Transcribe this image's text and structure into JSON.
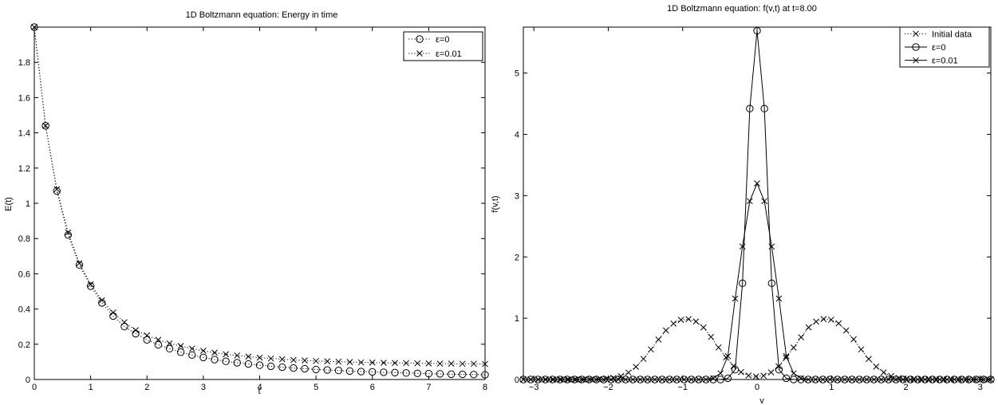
{
  "chart_data": [
    {
      "type": "scatter",
      "title": "1D Boltzmann equation: Energy in time",
      "xlabel": "t",
      "ylabel": "E(t)",
      "xlim": [
        0,
        8
      ],
      "ylim": [
        0,
        2
      ],
      "xticks": [
        "0",
        "1",
        "2",
        "3",
        "4",
        "5",
        "6",
        "7",
        "8"
      ],
      "yticks": [
        "0",
        "0.2",
        "0.4",
        "0.6",
        "0.8",
        "1",
        "1.2",
        "1.4",
        "1.6",
        "1.8"
      ],
      "legend_position": "top-right",
      "grid": false,
      "series": [
        {
          "name": "ε=0",
          "marker": "circle",
          "line": "dotted",
          "x": [
            0,
            0.2,
            0.4,
            0.6,
            0.8,
            1,
            1.2,
            1.4,
            1.6,
            1.8,
            2,
            2.2,
            2.4,
            2.6,
            2.8,
            3,
            3.2,
            3.4,
            3.6,
            3.8,
            4,
            4.2,
            4.4,
            4.6,
            4.8,
            5,
            5.2,
            5.4,
            5.6,
            5.8,
            6,
            6.2,
            6.4,
            6.6,
            6.8,
            7,
            7.2,
            7.4,
            7.6,
            7.8,
            8
          ],
          "y": [
            2.0,
            1.44,
            1.07,
            0.82,
            0.65,
            0.53,
            0.435,
            0.36,
            0.3,
            0.26,
            0.225,
            0.197,
            0.175,
            0.155,
            0.139,
            0.125,
            0.113,
            0.103,
            0.095,
            0.088,
            0.081,
            0.075,
            0.07,
            0.065,
            0.061,
            0.057,
            0.054,
            0.051,
            0.048,
            0.045,
            0.043,
            0.041,
            0.039,
            0.037,
            0.035,
            0.033,
            0.032,
            0.03,
            0.029,
            0.028,
            0.027
          ]
        },
        {
          "name": "ε=0.01",
          "marker": "x",
          "line": "dotted",
          "x": [
            0,
            0.2,
            0.4,
            0.6,
            0.8,
            1,
            1.2,
            1.4,
            1.6,
            1.8,
            2,
            2.2,
            2.4,
            2.6,
            2.8,
            3,
            3.2,
            3.4,
            3.6,
            3.8,
            4,
            4.2,
            4.4,
            4.6,
            4.8,
            5,
            5.2,
            5.4,
            5.6,
            5.8,
            6,
            6.2,
            6.4,
            6.6,
            6.8,
            7,
            7.2,
            7.4,
            7.6,
            7.8,
            8
          ],
          "y": [
            2.0,
            1.44,
            1.08,
            0.835,
            0.66,
            0.54,
            0.45,
            0.38,
            0.325,
            0.28,
            0.25,
            0.225,
            0.205,
            0.19,
            0.175,
            0.163,
            0.152,
            0.143,
            0.136,
            0.13,
            0.124,
            0.119,
            0.115,
            0.111,
            0.108,
            0.105,
            0.103,
            0.101,
            0.099,
            0.097,
            0.096,
            0.095,
            0.094,
            0.093,
            0.092,
            0.091,
            0.09,
            0.09,
            0.089,
            0.089,
            0.088
          ]
        }
      ]
    },
    {
      "type": "line",
      "title": "1D Boltzmann equation: f(v,t) at t=8.00",
      "xlabel": "v",
      "ylabel": "f(v,t)",
      "xlim": [
        -3.1416,
        3.1416
      ],
      "ylim": [
        0,
        5.75
      ],
      "xticks": [
        "−3",
        "−2",
        "−1",
        "0",
        "1",
        "2",
        "3"
      ],
      "yticks": [
        "0",
        "1",
        "2",
        "3",
        "4",
        "5"
      ],
      "legend_position": "top-right",
      "grid": false,
      "series": [
        {
          "name": "Initial data",
          "marker": "x",
          "line": "dotted",
          "x": [
            -3.1416,
            -3.0407,
            -2.9398,
            -2.8389,
            -2.738,
            -2.6371,
            -2.5362,
            -2.4353,
            -2.3344,
            -2.2335,
            -2.1326,
            -2.0317,
            -1.9308,
            -1.8299,
            -1.729,
            -1.6281,
            -1.5272,
            -1.4263,
            -1.3254,
            -1.2245,
            -1.1236,
            -1.0227,
            -0.9218,
            -0.8209,
            -0.72,
            -0.6191,
            -0.5182,
            -0.4173,
            -0.3164,
            -0.2155,
            -0.1146,
            -0.0137,
            0.0872,
            0.1881,
            0.289,
            0.3899,
            0.4908,
            0.5917,
            0.6926,
            0.7935,
            0.8944,
            0.9953,
            1.0962,
            1.1971,
            1.298,
            1.3989,
            1.4998,
            1.6007,
            1.7016,
            1.8025,
            1.9034,
            2.0043,
            2.1052,
            2.2061,
            2.307,
            2.4079,
            2.5088,
            2.6097,
            2.7106,
            2.8115,
            2.9124,
            3.0133,
            3.1142
          ],
          "y": [
            0,
            0,
            0,
            0,
            0,
            0,
            0,
            0,
            0,
            0.001,
            0.003,
            0.009,
            0.024,
            0.055,
            0.113,
            0.207,
            0.336,
            0.49,
            0.652,
            0.8,
            0.912,
            0.972,
            0.985,
            0.946,
            0.849,
            0.695,
            0.523,
            0.36,
            0.22,
            0.12,
            0.065,
            0.05,
            0.062,
            0.115,
            0.215,
            0.355,
            0.52,
            0.69,
            0.85,
            0.945,
            0.985,
            0.975,
            0.915,
            0.8,
            0.655,
            0.49,
            0.335,
            0.21,
            0.115,
            0.055,
            0.024,
            0.009,
            0.003,
            0.001,
            0,
            0,
            0,
            0,
            0,
            0,
            0,
            0,
            0
          ]
        },
        {
          "name": "ε=0",
          "marker": "circle",
          "line": "solid",
          "x": [
            -3.1416,
            -3.0434,
            -2.9452,
            -2.8471,
            -2.7489,
            -2.6507,
            -2.5525,
            -2.4544,
            -2.3562,
            -2.258,
            -2.1598,
            -2.0617,
            -1.9635,
            -1.8653,
            -1.7671,
            -1.669,
            -1.5708,
            -1.4726,
            -1.3744,
            -1.2763,
            -1.1781,
            -1.0799,
            -0.9817,
            -0.8836,
            -0.7854,
            -0.6872,
            -0.589,
            -0.4909,
            -0.3927,
            -0.2945,
            -0.1963,
            -0.0982,
            0,
            0.0982,
            0.1963,
            0.2945,
            0.3927,
            0.4909,
            0.589,
            0.6872,
            0.7854,
            0.8836,
            0.9817,
            1.0799,
            1.1781,
            1.2763,
            1.3744,
            1.4726,
            1.5708,
            1.669,
            1.7671,
            1.8653,
            1.9635,
            2.0617,
            2.1598,
            2.258,
            2.3562,
            2.4544,
            2.5525,
            2.6507,
            2.7489,
            2.8471,
            2.9452,
            3.0434,
            3.1416
          ],
          "y": [
            0,
            0,
            0,
            0,
            0,
            0,
            0,
            0,
            0,
            0,
            0,
            0,
            0,
            0,
            0,
            0,
            0,
            0,
            0,
            0,
            0,
            0,
            0,
            0,
            0,
            0,
            0,
            0,
            0.02,
            0.16,
            1.57,
            4.42,
            5.69,
            4.42,
            1.57,
            0.16,
            0.02,
            0,
            0,
            0,
            0,
            0,
            0,
            0,
            0,
            0,
            0,
            0,
            0,
            0,
            0,
            0,
            0,
            0,
            0,
            0,
            0,
            0,
            0,
            0,
            0,
            0,
            0,
            0,
            0
          ]
        },
        {
          "name": "ε=0.01",
          "marker": "x",
          "line": "solid",
          "x": [
            -3.1416,
            -3.0434,
            -2.9452,
            -2.8471,
            -2.7489,
            -2.6507,
            -2.5525,
            -2.4544,
            -2.3562,
            -2.258,
            -2.1598,
            -2.0617,
            -1.9635,
            -1.8653,
            -1.7671,
            -1.669,
            -1.5708,
            -1.4726,
            -1.3744,
            -1.2763,
            -1.1781,
            -1.0799,
            -0.9817,
            -0.8836,
            -0.7854,
            -0.6872,
            -0.589,
            -0.4909,
            -0.3927,
            -0.2945,
            -0.1963,
            -0.0982,
            0,
            0.0982,
            0.1963,
            0.2945,
            0.3927,
            0.4909,
            0.589,
            0.6872,
            0.7854,
            0.8836,
            0.9817,
            1.0799,
            1.1781,
            1.2763,
            1.3744,
            1.4726,
            1.5708,
            1.669,
            1.7671,
            1.8653,
            1.9635,
            2.0617,
            2.1598,
            2.258,
            2.3562,
            2.4544,
            2.5525,
            2.6507,
            2.7489,
            2.8471,
            2.9452,
            3.0434,
            3.1416
          ],
          "y": [
            0,
            0,
            0,
            0,
            0,
            0,
            0,
            0,
            0,
            0,
            0,
            0,
            0,
            0,
            0,
            0,
            0,
            0,
            0,
            0,
            0,
            0,
            0,
            0,
            0,
            0,
            0.02,
            0.1,
            0.38,
            1.32,
            2.17,
            2.91,
            3.2,
            2.91,
            2.17,
            1.32,
            0.38,
            0.1,
            0.02,
            0,
            0,
            0,
            0,
            0,
            0,
            0,
            0,
            0,
            0,
            0,
            0,
            0,
            0,
            0,
            0,
            0,
            0,
            0,
            0,
            0,
            0,
            0,
            0,
            0,
            0
          ]
        }
      ]
    }
  ]
}
